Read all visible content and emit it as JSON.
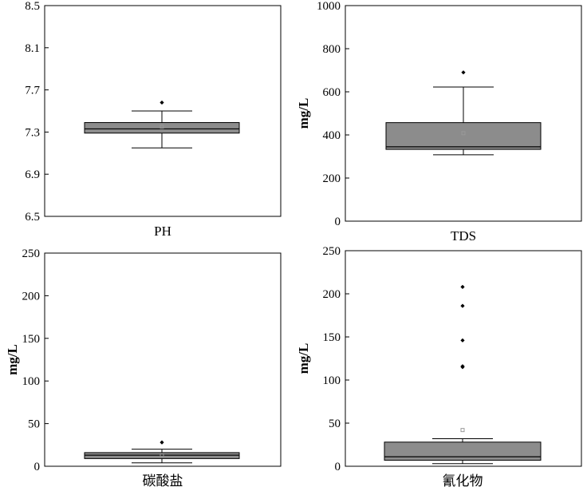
{
  "colors": {
    "box_fill": "#8c8c8c",
    "frame": "#000000",
    "mean_marker": "#999999"
  },
  "chart_data": [
    {
      "type": "box",
      "xlabel": "PH",
      "ylabel": "",
      "ylim": [
        6.5,
        8.5
      ],
      "ticks": [
        6.5,
        6.9,
        7.3,
        7.7,
        8.1,
        8.5
      ],
      "tick_labels": [
        "6.5",
        "6.9",
        "7.3",
        "7.7",
        "8.1",
        "8.5"
      ],
      "box": {
        "whisker_low": 7.15,
        "q1": 7.29,
        "median": 7.33,
        "q3": 7.39,
        "whisker_high": 7.5
      },
      "mean": 7.35,
      "outliers": [
        7.58
      ]
    },
    {
      "type": "box",
      "xlabel": "TDS",
      "ylabel": "mg/L",
      "ylim": [
        0,
        1000
      ],
      "ticks": [
        0,
        200,
        400,
        600,
        800,
        1000
      ],
      "tick_labels": [
        "0",
        "200",
        "400",
        "600",
        "800",
        "1000"
      ],
      "box": {
        "whisker_low": 308,
        "q1": 333,
        "median": 345,
        "q3": 457,
        "whisker_high": 622
      },
      "mean": 408,
      "outliers": [
        690
      ]
    },
    {
      "type": "box",
      "xlabel": "碳酸盐",
      "ylabel": "mg/L",
      "ylim": [
        0,
        250
      ],
      "ticks": [
        0,
        50,
        100,
        150,
        200,
        250
      ],
      "tick_labels": [
        "0",
        "50",
        "100",
        "150",
        "200",
        "250"
      ],
      "box": {
        "whisker_low": 4,
        "q1": 9,
        "median": 13,
        "q3": 16,
        "whisker_high": 20
      },
      "mean": 13,
      "outliers": [
        28
      ]
    },
    {
      "type": "box",
      "xlabel": "氰化物",
      "ylabel": "mg/L",
      "ylim": [
        0,
        250
      ],
      "ticks": [
        0,
        50,
        100,
        150,
        200,
        250
      ],
      "tick_labels": [
        "0",
        "50",
        "100",
        "150",
        "200",
        "250"
      ],
      "box": {
        "whisker_low": 3,
        "q1": 7,
        "median": 11,
        "q3": 28,
        "whisker_high": 32
      },
      "mean": 42,
      "outliers": [
        115,
        116,
        146,
        186,
        208
      ]
    }
  ]
}
